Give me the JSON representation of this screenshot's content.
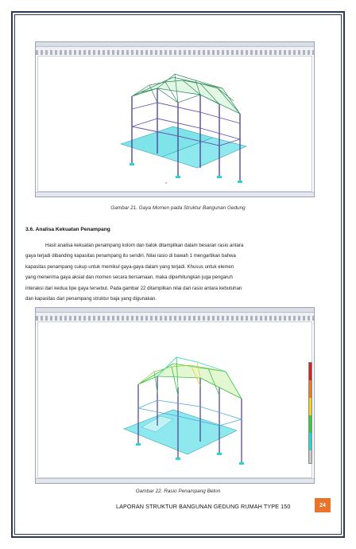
{
  "figure1": {
    "caption": "Gambar 21. Gaya Momen pada Struktur Bangunan Gedung"
  },
  "section": {
    "heading": "3.6. Analisa Kekuatan Penampang",
    "paragraph_lines": [
      "Hasil analisa kekuatan penampang kolom dan balok ditampilkan dalam besaran rasio antara",
      "gaya terjadi dibanding kapasitas penampang itu sendiri. Nilai rasio di bawah 1 mengartikan bahwa",
      "kapasitas penampang cukup untuk memikul gaya-gaya dalam yang terjadi. Khusus untuk elemen",
      "yang menerima gaya aksial dan momen secara bersamaan, maka diperhitungkan juga pengaruh",
      "interaksi dari kedua tipe gaya tersebut. Pada gambar 22 ditampilkan nilai dari rasio antara kebutuhan",
      "dan kapasitas dari penampang struktur baja yang digunakan."
    ]
  },
  "figure2": {
    "caption": "Gambar 22. Rasio Penampang Beton",
    "legend_colors": [
      "#d81e1e",
      "#f07a1a",
      "#f2d21a",
      "#2fcf3a",
      "#2ad7d0",
      "#c9c9c9"
    ]
  },
  "footer": {
    "title": "LAPORAN STRUKTUR BANGUNAN GEDUNG RUMAH TYPE 150",
    "page_number": "24"
  },
  "colors": {
    "frame": "#2b3a55",
    "accent": "#e8732a",
    "slab": "#7fe3ea",
    "frame_green": "#2e8b57",
    "frame_purple": "#4b3a8c"
  }
}
